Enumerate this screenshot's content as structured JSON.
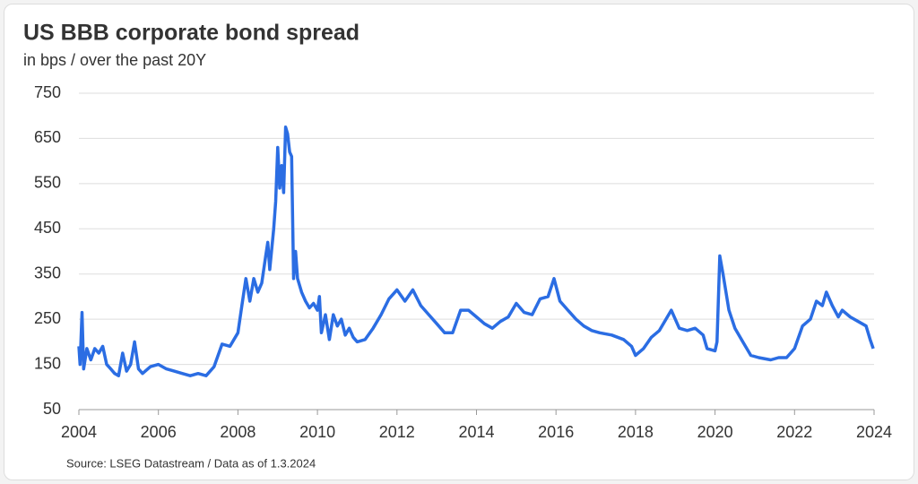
{
  "chart_data": {
    "type": "line",
    "title": "US BBB corporate bond spread",
    "subtitle": "in bps / over the past 20Y",
    "source": "Source: LSEG Datastream /  Data as of 1.3.2024",
    "xlim": [
      2004,
      2024
    ],
    "xticks": [
      2004,
      2006,
      2008,
      2010,
      2012,
      2014,
      2016,
      2018,
      2020,
      2022,
      2024
    ],
    "ylim": [
      50,
      750
    ],
    "yticks": [
      50,
      150,
      250,
      350,
      450,
      550,
      650,
      750
    ],
    "grid": true,
    "series": [
      {
        "name": "US BBB spread",
        "color": "#2b6de3",
        "x": [
          2004.0,
          2004.03,
          2004.08,
          2004.12,
          2004.2,
          2004.3,
          2004.4,
          2004.5,
          2004.6,
          2004.7,
          2004.8,
          2004.9,
          2005.0,
          2005.1,
          2005.2,
          2005.3,
          2005.4,
          2005.5,
          2005.6,
          2005.8,
          2006.0,
          2006.2,
          2006.4,
          2006.6,
          2006.8,
          2007.0,
          2007.2,
          2007.4,
          2007.6,
          2007.8,
          2008.0,
          2008.1,
          2008.2,
          2008.3,
          2008.4,
          2008.5,
          2008.6,
          2008.7,
          2008.75,
          2008.8,
          2008.9,
          2008.95,
          2009.0,
          2009.05,
          2009.1,
          2009.15,
          2009.2,
          2009.25,
          2009.3,
          2009.35,
          2009.4,
          2009.45,
          2009.5,
          2009.6,
          2009.7,
          2009.8,
          2009.9,
          2010.0,
          2010.05,
          2010.1,
          2010.2,
          2010.3,
          2010.4,
          2010.5,
          2010.6,
          2010.7,
          2010.8,
          2010.9,
          2011.0,
          2011.2,
          2011.4,
          2011.6,
          2011.8,
          2012.0,
          2012.2,
          2012.4,
          2012.6,
          2012.8,
          2013.0,
          2013.2,
          2013.4,
          2013.6,
          2013.8,
          2014.0,
          2014.2,
          2014.4,
          2014.6,
          2014.8,
          2015.0,
          2015.2,
          2015.4,
          2015.6,
          2015.8,
          2015.95,
          2016.1,
          2016.3,
          2016.5,
          2016.7,
          2016.9,
          2017.1,
          2017.4,
          2017.7,
          2017.9,
          2018.0,
          2018.2,
          2018.4,
          2018.6,
          2018.9,
          2019.1,
          2019.3,
          2019.5,
          2019.7,
          2019.8,
          2020.0,
          2020.05,
          2020.12,
          2020.2,
          2020.35,
          2020.5,
          2020.7,
          2020.9,
          2021.1,
          2021.4,
          2021.6,
          2021.8,
          2022.0,
          2022.2,
          2022.4,
          2022.55,
          2022.7,
          2022.8,
          2022.95,
          2023.1,
          2023.2,
          2023.4,
          2023.6,
          2023.8,
          2023.9,
          2023.98
        ],
        "values": [
          190,
          150,
          265,
          140,
          185,
          160,
          185,
          175,
          190,
          150,
          140,
          130,
          125,
          175,
          135,
          150,
          200,
          140,
          130,
          145,
          150,
          140,
          135,
          130,
          125,
          130,
          125,
          145,
          195,
          190,
          220,
          280,
          340,
          290,
          340,
          310,
          330,
          390,
          420,
          360,
          450,
          510,
          630,
          540,
          590,
          530,
          675,
          660,
          620,
          610,
          340,
          400,
          340,
          310,
          290,
          275,
          285,
          270,
          300,
          220,
          260,
          205,
          260,
          235,
          250,
          215,
          230,
          210,
          200,
          205,
          230,
          260,
          295,
          315,
          290,
          315,
          280,
          260,
          240,
          220,
          220,
          270,
          270,
          255,
          240,
          230,
          245,
          255,
          285,
          265,
          260,
          295,
          300,
          340,
          290,
          270,
          250,
          235,
          225,
          220,
          215,
          205,
          190,
          170,
          185,
          210,
          225,
          270,
          230,
          225,
          230,
          215,
          185,
          180,
          200,
          390,
          350,
          270,
          230,
          200,
          170,
          165,
          160,
          165,
          165,
          185,
          235,
          250,
          290,
          280,
          310,
          280,
          255,
          270,
          255,
          245,
          235,
          205,
          185
        ]
      }
    ]
  }
}
